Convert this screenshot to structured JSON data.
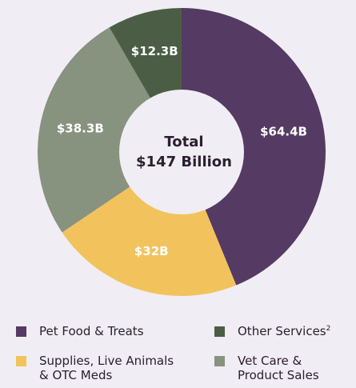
{
  "chart_data": {
    "type": "donut",
    "center_title": "Total",
    "center_subtitle": "$147 Billion",
    "categories": [
      "Pet Food & Treats",
      "Supplies, Live Animals & OTC Meds",
      "Vet Care & Product Sales",
      "Other Services"
    ],
    "footnotes": [
      null,
      null,
      null,
      "2"
    ],
    "values": [
      64.4,
      32,
      38.3,
      12.3
    ],
    "value_labels": [
      "$64.4B",
      "$32B",
      "$38.3B",
      "$12.3B"
    ],
    "colors": [
      "#553a63",
      "#f2c35d",
      "#87927f",
      "#4b5e45"
    ]
  }
}
